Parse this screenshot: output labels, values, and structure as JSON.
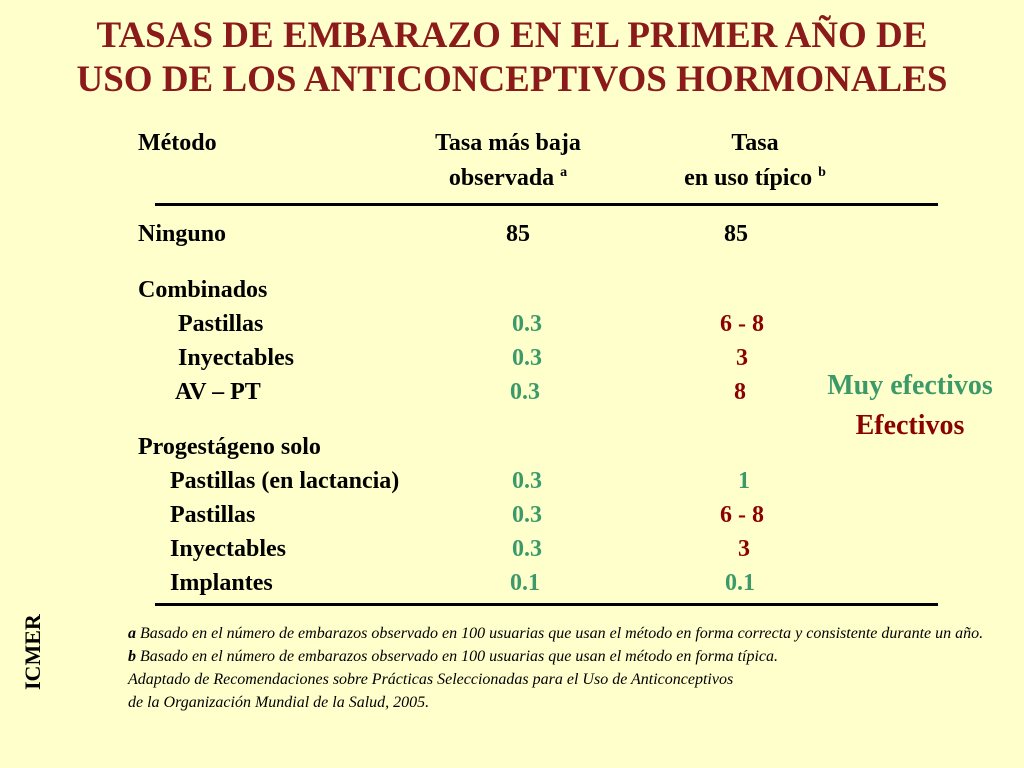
{
  "title": {
    "line1": "TASAS DE EMBARAZO EN EL PRIMER AÑO DE",
    "line2": "USO DE LOS ANTICONCEPTIVOS HORMONALES"
  },
  "headers": {
    "method": "Método",
    "lowest_line1": "Tasa más baja",
    "lowest_line2": "observada",
    "lowest_sup": "a",
    "typical_line1": "Tasa",
    "typical_line2": "en uso típico",
    "typical_sup": "b"
  },
  "rows": {
    "ninguno": {
      "label": "Ninguno",
      "lowest": "85",
      "typical": "85"
    },
    "combinados": {
      "label": "Combinados"
    },
    "comb_pastillas": {
      "label": "Pastillas",
      "lowest": "0.3",
      "typical": "6 - 8"
    },
    "comb_inyectables": {
      "label": "Inyectables",
      "lowest": "0.3",
      "typical": "3"
    },
    "comb_avpt": {
      "label": "AV – PT",
      "lowest": "0.3",
      "typical": "8"
    },
    "progestageno": {
      "label": "Progestágeno solo"
    },
    "prog_lactancia": {
      "label": "Pastillas (en lactancia)",
      "lowest": "0.3",
      "typical": "1"
    },
    "prog_pastillas": {
      "label": "Pastillas",
      "lowest": "0.3",
      "typical": "6 - 8"
    },
    "prog_inyectables": {
      "label": "Inyectables",
      "lowest": "0.3",
      "typical": "3"
    },
    "prog_implantes": {
      "label": "Implantes",
      "lowest": "0.1",
      "typical": "0.1"
    }
  },
  "legend": {
    "very_effective": "Muy efectivos",
    "effective": "Efectivos"
  },
  "notes": {
    "a_marker": "a",
    "a_text": "Basado en el número de embarazos observado en 100 usuarias que usan el método en forma correcta y consistente durante un año.",
    "b_marker": "b",
    "b_text": "Basado en el número de embarazos observado en 100 usuarias que usan el método en forma típica.",
    "source_line1": "Adaptado de Recomendaciones sobre Prácticas Seleccionadas para el Uso de Anticonceptivos",
    "source_line2": "de la Organización Mundial de la Salud, 2005."
  },
  "side_label": "ICMER",
  "colors": {
    "background": "#ffffcc",
    "title": "#8b1a1a",
    "very_effective": "#3c9a6a",
    "effective": "#8b0000"
  }
}
